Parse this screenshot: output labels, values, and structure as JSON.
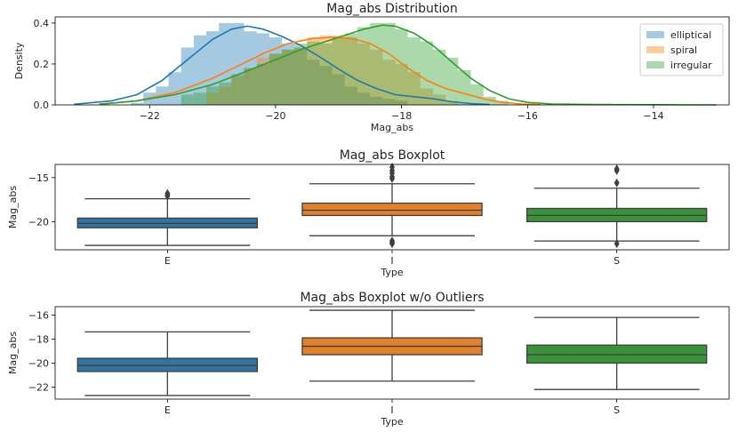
{
  "chart_data": [
    {
      "type": "histogram",
      "title": "Mag_abs Distribution",
      "xlabel": "Mag_abs",
      "ylabel": "Density",
      "xlim": [
        -23.5,
        -12.8
      ],
      "ylim": [
        0,
        0.43
      ],
      "xticks": [
        -22,
        -20,
        -18,
        -16,
        -14
      ],
      "yticks": [
        0.0,
        0.2,
        0.4
      ],
      "ytick_labels": [
        "0.0",
        "0.2",
        "0.4"
      ],
      "legend_position": "top-right",
      "series": [
        {
          "name": "elliptical",
          "color": "#1f77b4",
          "bins": [
            [
              -22.2,
              0.01
            ],
            [
              -22.0,
              0.06
            ],
            [
              -21.8,
              0.09
            ],
            [
              -21.6,
              0.16
            ],
            [
              -21.4,
              0.28
            ],
            [
              -21.2,
              0.34
            ],
            [
              -21.0,
              0.36
            ],
            [
              -20.8,
              0.4
            ],
            [
              -20.6,
              0.4
            ],
            [
              -20.4,
              0.36
            ],
            [
              -20.2,
              0.35
            ],
            [
              -20.0,
              0.33
            ],
            [
              -19.8,
              0.3
            ],
            [
              -19.6,
              0.28
            ],
            [
              -19.4,
              0.22
            ],
            [
              -19.2,
              0.19
            ],
            [
              -19.0,
              0.15
            ],
            [
              -18.8,
              0.09
            ],
            [
              -18.6,
              0.06
            ],
            [
              -18.4,
              0.04
            ],
            [
              -18.2,
              0.03
            ],
            [
              -18.0,
              0.02
            ]
          ],
          "kde": [
            [
              -23.2,
              0.003
            ],
            [
              -22.6,
              0.02
            ],
            [
              -22.2,
              0.05
            ],
            [
              -21.8,
              0.12
            ],
            [
              -21.4,
              0.22
            ],
            [
              -21.0,
              0.32
            ],
            [
              -20.7,
              0.37
            ],
            [
              -20.45,
              0.385
            ],
            [
              -20.2,
              0.37
            ],
            [
              -19.9,
              0.335
            ],
            [
              -19.6,
              0.29
            ],
            [
              -19.3,
              0.235
            ],
            [
              -19.0,
              0.175
            ],
            [
              -18.7,
              0.12
            ],
            [
              -18.4,
              0.08
            ],
            [
              -18.1,
              0.05
            ],
            [
              -17.8,
              0.04
            ],
            [
              -17.5,
              0.03
            ],
            [
              -17.2,
              0.015
            ],
            [
              -16.9,
              0.006
            ],
            [
              -16.6,
              0.002
            ]
          ]
        },
        {
          "name": "spiral",
          "color": "#ff7f0e",
          "bins": [
            [
              -21.0,
              0.06
            ],
            [
              -20.8,
              0.09
            ],
            [
              -20.6,
              0.14
            ],
            [
              -20.4,
              0.18
            ],
            [
              -20.2,
              0.23
            ],
            [
              -20.0,
              0.25
            ],
            [
              -19.8,
              0.27
            ],
            [
              -19.6,
              0.28
            ],
            [
              -19.4,
              0.33
            ],
            [
              -19.2,
              0.34
            ],
            [
              -19.0,
              0.34
            ],
            [
              -18.8,
              0.33
            ],
            [
              -18.6,
              0.3
            ],
            [
              -18.4,
              0.27
            ],
            [
              -18.2,
              0.22
            ],
            [
              -18.0,
              0.2
            ],
            [
              -17.8,
              0.16
            ],
            [
              -17.6,
              0.08
            ],
            [
              -17.4,
              0.05
            ],
            [
              -17.2,
              0.02
            ]
          ],
          "kde": [
            [
              -22.8,
              0.003
            ],
            [
              -22.2,
              0.02
            ],
            [
              -21.6,
              0.06
            ],
            [
              -21.0,
              0.13
            ],
            [
              -20.6,
              0.19
            ],
            [
              -20.2,
              0.25
            ],
            [
              -19.8,
              0.3
            ],
            [
              -19.4,
              0.325
            ],
            [
              -19.1,
              0.33
            ],
            [
              -18.8,
              0.325
            ],
            [
              -18.5,
              0.3
            ],
            [
              -18.2,
              0.25
            ],
            [
              -17.9,
              0.18
            ],
            [
              -17.6,
              0.12
            ],
            [
              -17.3,
              0.08
            ],
            [
              -17.0,
              0.055
            ],
            [
              -16.7,
              0.03
            ],
            [
              -16.4,
              0.012
            ],
            [
              -16.1,
              0.004
            ],
            [
              -15.8,
              0.001
            ]
          ]
        },
        {
          "name": "irregular",
          "color": "#2ca02c",
          "bins": [
            [
              -21.4,
              0.05
            ],
            [
              -21.2,
              0.06
            ],
            [
              -21.0,
              0.09
            ],
            [
              -20.8,
              0.11
            ],
            [
              -20.6,
              0.15
            ],
            [
              -20.4,
              0.18
            ],
            [
              -20.2,
              0.2
            ],
            [
              -20.0,
              0.25
            ],
            [
              -19.8,
              0.27
            ],
            [
              -19.6,
              0.3
            ],
            [
              -19.4,
              0.31
            ],
            [
              -19.2,
              0.3
            ],
            [
              -19.0,
              0.33
            ],
            [
              -18.8,
              0.35
            ],
            [
              -18.6,
              0.38
            ],
            [
              -18.4,
              0.4
            ],
            [
              -18.2,
              0.4
            ],
            [
              -18.0,
              0.37
            ],
            [
              -17.8,
              0.33
            ],
            [
              -17.6,
              0.31
            ],
            [
              -17.4,
              0.27
            ],
            [
              -17.2,
              0.23
            ],
            [
              -17.0,
              0.17
            ],
            [
              -16.8,
              0.1
            ],
            [
              -16.6,
              0.04
            ],
            [
              -16.4,
              0.02
            ]
          ],
          "kde": [
            [
              -22.8,
              0.003
            ],
            [
              -22.2,
              0.02
            ],
            [
              -21.6,
              0.05
            ],
            [
              -21.0,
              0.1
            ],
            [
              -20.5,
              0.16
            ],
            [
              -20.0,
              0.22
            ],
            [
              -19.6,
              0.27
            ],
            [
              -19.2,
              0.31
            ],
            [
              -18.9,
              0.34
            ],
            [
              -18.6,
              0.37
            ],
            [
              -18.3,
              0.39
            ],
            [
              -18.1,
              0.385
            ],
            [
              -17.8,
              0.35
            ],
            [
              -17.5,
              0.29
            ],
            [
              -17.2,
              0.21
            ],
            [
              -16.9,
              0.13
            ],
            [
              -16.6,
              0.07
            ],
            [
              -16.3,
              0.03
            ],
            [
              -16.0,
              0.012
            ],
            [
              -15.6,
              0.004
            ],
            [
              -15.0,
              0.002
            ],
            [
              -14.0,
              0.001
            ],
            [
              -13.0,
              0.0
            ]
          ]
        }
      ]
    },
    {
      "type": "box",
      "title": "Mag_abs Boxplot",
      "xlabel": "Type",
      "ylabel": "Mag_abs",
      "categories": [
        "E",
        "I",
        "S"
      ],
      "ylim": [
        -23.2,
        -13.5
      ],
      "yticks": [
        -15,
        -20
      ],
      "boxes": [
        {
          "category": "E",
          "color": "#3274a1",
          "whislo": -22.7,
          "q1": -20.7,
          "med": -20.2,
          "q3": -19.6,
          "whishi": -17.4,
          "fliers": [
            -16.8,
            -17.0,
            -17.1
          ]
        },
        {
          "category": "I",
          "color": "#e1812c",
          "whislo": -21.6,
          "q1": -19.3,
          "med": -18.7,
          "q3": -17.9,
          "whishi": -15.7,
          "fliers": [
            -13.8,
            -14.2,
            -14.5,
            -14.9,
            -15.1,
            -22.2,
            -22.4,
            -22.5
          ]
        },
        {
          "category": "S",
          "color": "#3a923a",
          "whislo": -22.2,
          "q1": -20.0,
          "med": -19.3,
          "q3": -18.5,
          "whishi": -16.2,
          "fliers": [
            -14.0,
            -14.2,
            -15.6,
            -22.5
          ]
        }
      ]
    },
    {
      "type": "box",
      "title": "Mag_abs Boxplot w/o Outliers",
      "xlabel": "Type",
      "ylabel": "Mag_abs",
      "categories": [
        "E",
        "I",
        "S"
      ],
      "ylim": [
        -23.0,
        -15.3
      ],
      "yticks": [
        -16,
        -18,
        -20,
        -22
      ],
      "boxes": [
        {
          "category": "E",
          "color": "#3274a1",
          "whislo": -22.7,
          "q1": -20.7,
          "med": -20.2,
          "q3": -19.6,
          "whishi": -17.4,
          "fliers": []
        },
        {
          "category": "I",
          "color": "#e1812c",
          "whislo": -21.5,
          "q1": -19.3,
          "med": -18.6,
          "q3": -17.9,
          "whishi": -15.6,
          "fliers": []
        },
        {
          "category": "S",
          "color": "#3a923a",
          "whislo": -22.2,
          "q1": -20.0,
          "med": -19.3,
          "q3": -18.5,
          "whishi": -16.2,
          "fliers": []
        }
      ]
    }
  ]
}
